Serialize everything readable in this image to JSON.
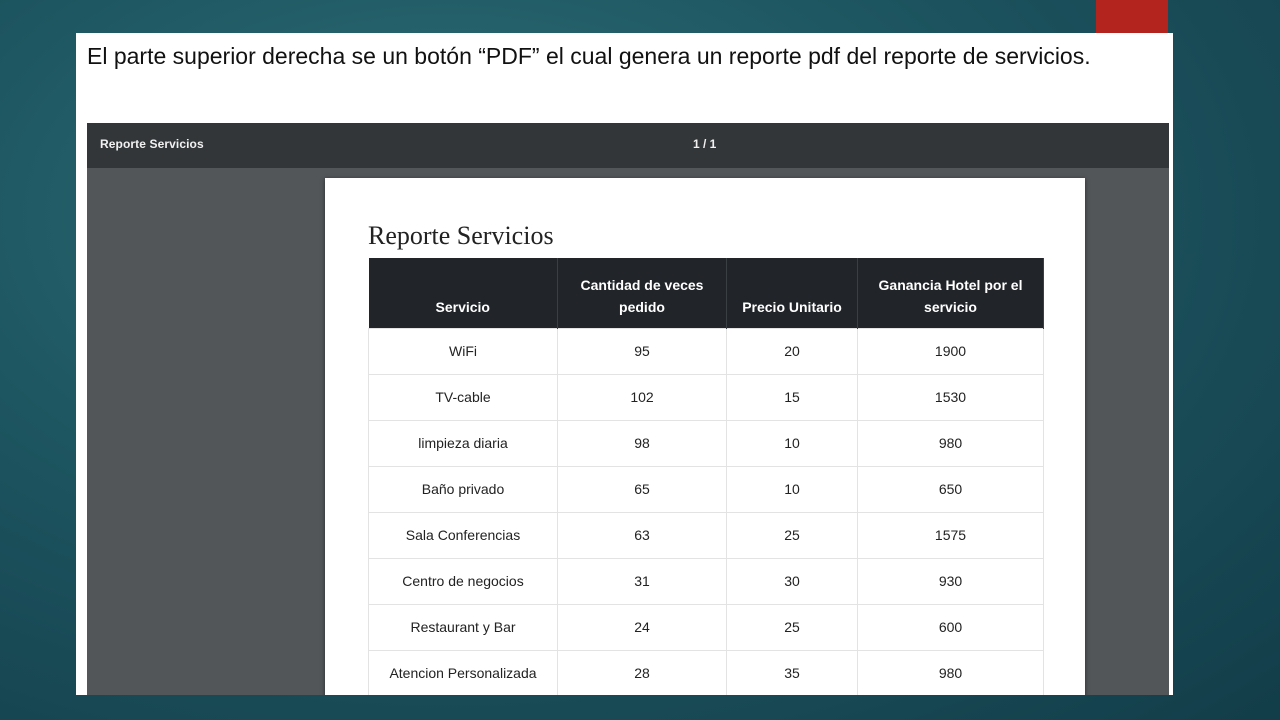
{
  "caption": "El parte superior derecha se un botón “PDF” el cual genera un reporte pdf del reporte de servicios.",
  "viewer": {
    "title": "Reporte Servicios",
    "page_indicator": "1 / 1"
  },
  "document": {
    "title": "Reporte Servicios",
    "headers": [
      "Servicio",
      "Cantidad de veces pedido",
      "Precio Unitario",
      "Ganancia Hotel por el servicio"
    ],
    "rows": [
      [
        "WiFi",
        "95",
        "20",
        "1900"
      ],
      [
        "TV-cable",
        "102",
        "15",
        "1530"
      ],
      [
        "limpieza diaria",
        "98",
        "10",
        "980"
      ],
      [
        "Baño privado",
        "65",
        "10",
        "650"
      ],
      [
        "Sala Conferencias",
        "63",
        "25",
        "1575"
      ],
      [
        "Centro de negocios",
        "31",
        "30",
        "930"
      ],
      [
        "Restaurant y Bar",
        "24",
        "25",
        "600"
      ],
      [
        "Atencion Personalizada",
        "28",
        "35",
        "980"
      ]
    ]
  },
  "colors": {
    "accent": "#b3241f",
    "background": "#1d5560",
    "toolbar": "#323639",
    "table_header": "#212529"
  }
}
